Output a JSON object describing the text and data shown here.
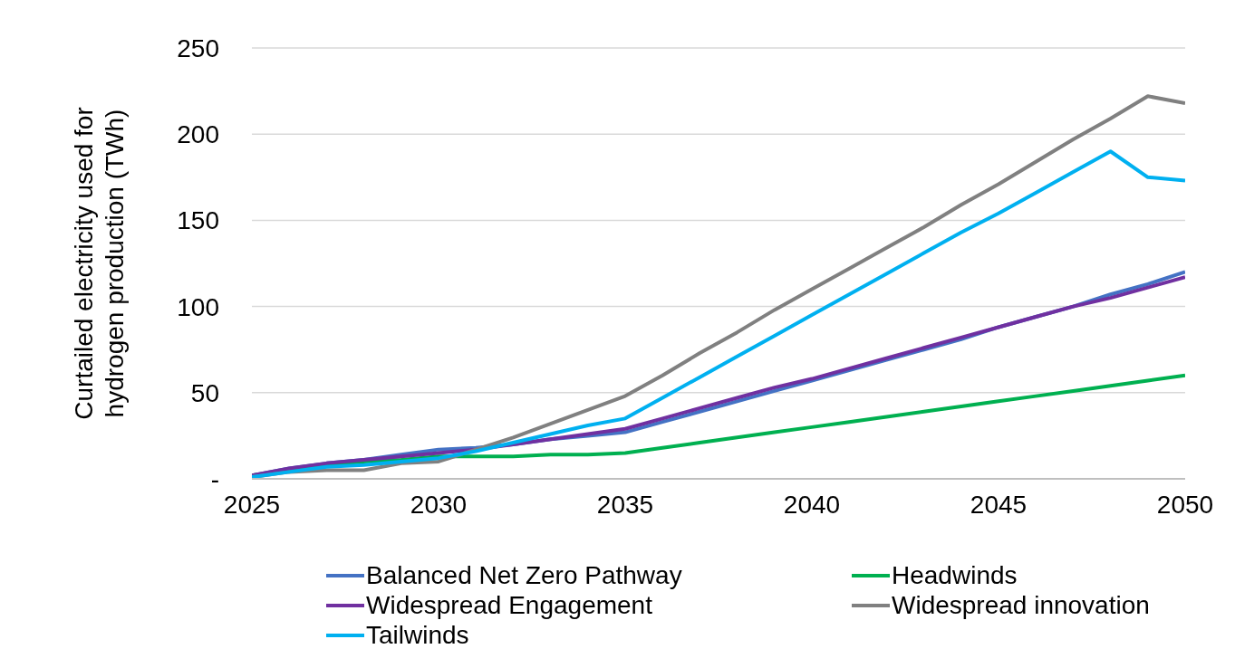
{
  "chart_data": {
    "type": "line",
    "ylabel": "Curtailed electricity used for hydrogen production (TWh)",
    "x": [
      2025,
      2026,
      2027,
      2028,
      2029,
      2030,
      2031,
      2032,
      2033,
      2034,
      2035,
      2036,
      2037,
      2038,
      2039,
      2040,
      2041,
      2042,
      2043,
      2044,
      2045,
      2046,
      2047,
      2048,
      2049,
      2050
    ],
    "series": [
      {
        "name": "Balanced Net Zero Pathway",
        "color": "#4472c4",
        "values": [
          2,
          6,
          9,
          11,
          14,
          17,
          18,
          20,
          23,
          25,
          27,
          33,
          39,
          45,
          51,
          57,
          63,
          69,
          75,
          81,
          88,
          94,
          100,
          107,
          113,
          120
        ]
      },
      {
        "name": "Headwinds",
        "color": "#00b050",
        "values": [
          2,
          5,
          8,
          10,
          11,
          13,
          13,
          13,
          14,
          14,
          15,
          18,
          21,
          24,
          27,
          30,
          33,
          36,
          39,
          42,
          45,
          48,
          51,
          54,
          57,
          60
        ]
      },
      {
        "name": "Widespread Engagement",
        "color": "#7030a0",
        "values": [
          2,
          6,
          9,
          11,
          13,
          15,
          17,
          20,
          23,
          26,
          29,
          35,
          41,
          47,
          53,
          58,
          64,
          70,
          76,
          82,
          88,
          94,
          100,
          105,
          111,
          117
        ]
      },
      {
        "name": "Widespread innovation",
        "color": "#808080",
        "values": [
          1,
          4,
          5,
          5,
          9,
          10,
          17,
          24,
          32,
          40,
          48,
          60,
          73,
          85,
          98,
          110,
          122,
          134,
          146,
          159,
          171,
          184,
          197,
          209,
          222,
          218
        ]
      },
      {
        "name": "Tailwinds",
        "color": "#00b0f0",
        "values": [
          1,
          4,
          7,
          8,
          10,
          12,
          16,
          21,
          26,
          31,
          35,
          47,
          59,
          71,
          83,
          95,
          107,
          119,
          131,
          143,
          154,
          166,
          178,
          190,
          175,
          173
        ]
      }
    ],
    "xlim": [
      2025,
      2050
    ],
    "xticks": [
      2025,
      2030,
      2035,
      2040,
      2045,
      2050
    ],
    "ylim": [
      0,
      250
    ],
    "yticks": [
      {
        "value": 0,
        "label": "-"
      },
      50,
      100,
      150,
      200,
      250
    ],
    "grid": "y",
    "legend": "bottom",
    "marker": "none",
    "line_style": "solid"
  }
}
